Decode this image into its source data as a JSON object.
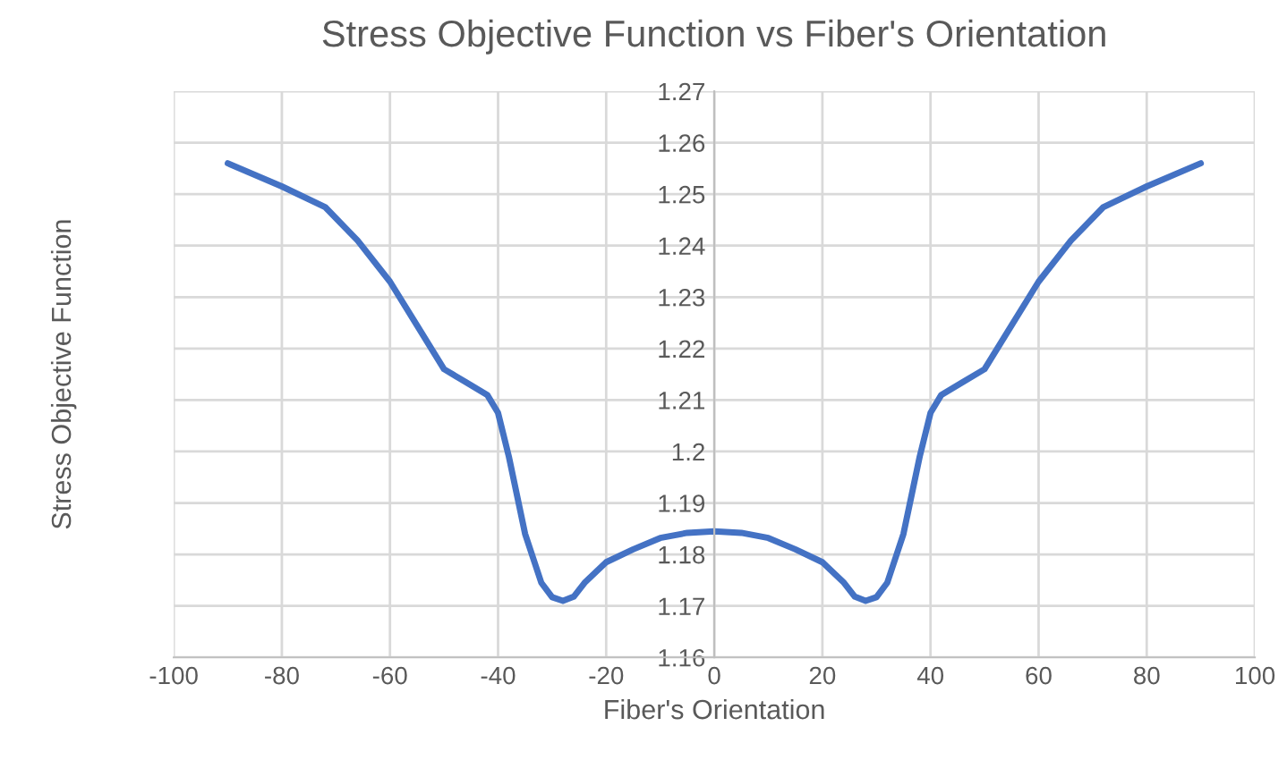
{
  "chart_data": {
    "type": "line",
    "title": "Stress Objective Function vs Fiber's Orientation",
    "xlabel": "Fiber's Orientation",
    "ylabel": "Stress Objective Function",
    "series": [
      {
        "color": "#4472c4",
        "x": [
          -90,
          -80,
          -72,
          -66,
          -60,
          -55,
          -50,
          -46,
          -42,
          -40,
          -38,
          -35,
          -32,
          -30,
          -28,
          -26,
          -24,
          -20,
          -15,
          -10,
          -5,
          0,
          5,
          10,
          15,
          20,
          24,
          26,
          28,
          30,
          32,
          35,
          38,
          40,
          42,
          46,
          50,
          55,
          60,
          66,
          72,
          80,
          90
        ],
        "values": [
          1.256,
          1.2515,
          1.2475,
          1.241,
          1.233,
          1.2245,
          1.216,
          1.2135,
          1.211,
          1.2075,
          1.199,
          1.184,
          1.1745,
          1.1717,
          1.171,
          1.1718,
          1.1745,
          1.1785,
          1.181,
          1.1832,
          1.1842,
          1.1845,
          1.1842,
          1.1832,
          1.181,
          1.1785,
          1.1745,
          1.1718,
          1.171,
          1.1717,
          1.1745,
          1.184,
          1.199,
          1.2075,
          1.211,
          1.2135,
          1.216,
          1.2245,
          1.233,
          1.241,
          1.2475,
          1.2515,
          1.256
        ]
      }
    ],
    "xlim": [
      -100,
      100
    ],
    "xticks": [
      -100,
      -80,
      -60,
      -40,
      -20,
      0,
      20,
      40,
      60,
      80,
      100
    ],
    "ylim": [
      1.16,
      1.27
    ],
    "yticks": [
      1.16,
      1.17,
      1.18,
      1.19,
      1.2,
      1.21,
      1.22,
      1.23,
      1.24,
      1.25,
      1.26,
      1.27
    ],
    "grid": true,
    "legend": false,
    "marker": "none",
    "line_style": "solid"
  }
}
